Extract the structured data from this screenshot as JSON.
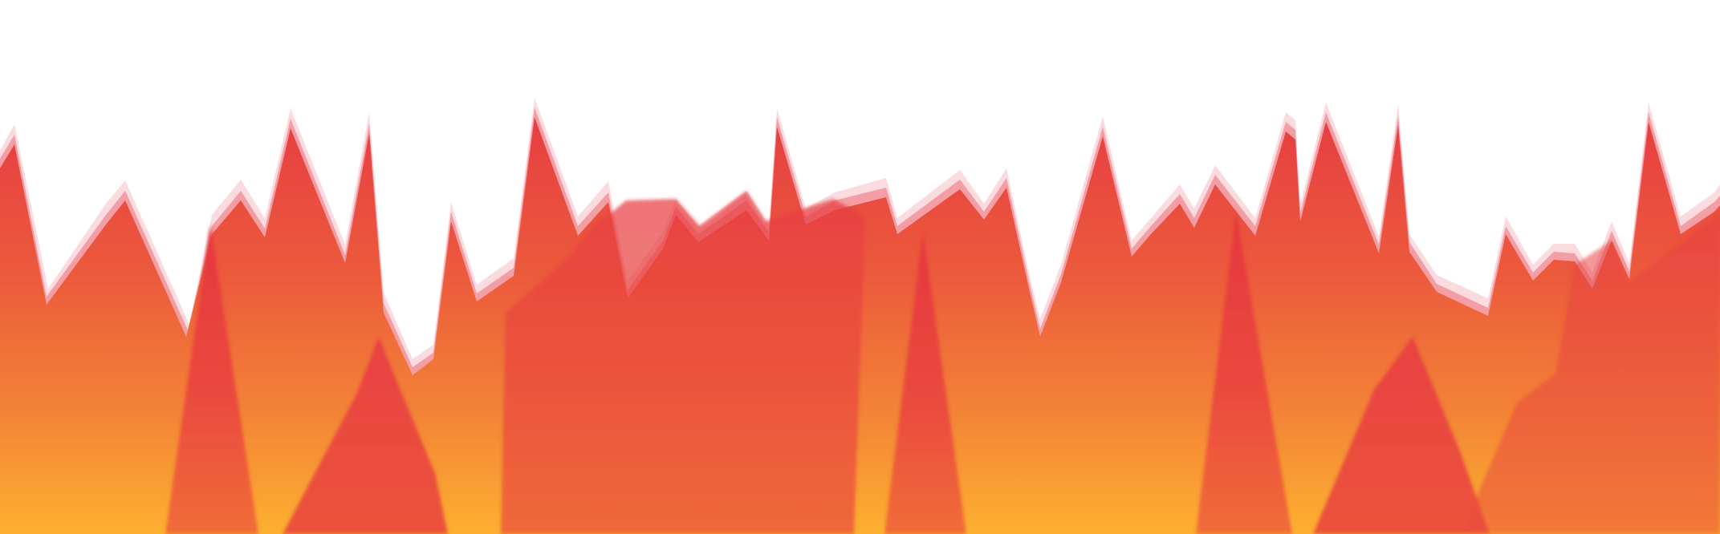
{
  "artwork": {
    "palette": {
      "background": "#ffffff",
      "crest_pink": "#f3b8bf",
      "crest_red": "#e5363f",
      "mid_orange": "#ef6f34",
      "base_yellow": "#fdae30"
    },
    "layers": [
      "main-fire-silhouette",
      "inner-flame-spikes",
      "base-flame-tongues"
    ]
  }
}
